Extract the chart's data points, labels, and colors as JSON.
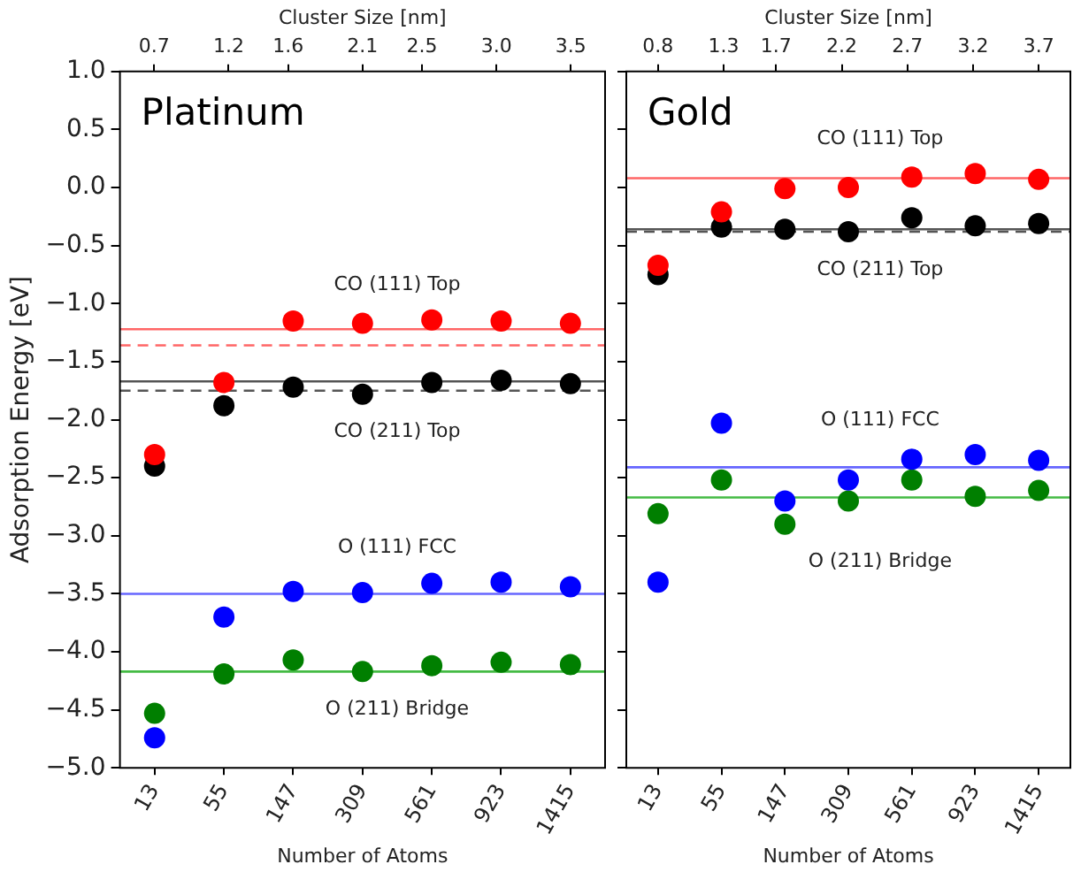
{
  "chart_data": [
    {
      "type": "scatter",
      "title": "Platinum",
      "xlabel": "Number of Atoms",
      "x2label": "Cluster Size [nm]",
      "ylabel": "Adsorption Energy [eV]",
      "categories": [
        "13",
        "55",
        "147",
        "309",
        "561",
        "923",
        "1415"
      ],
      "x2lim": [
        0.47,
        3.73
      ],
      "x2ticks": [
        0.7,
        1.2,
        1.6,
        2.1,
        2.5,
        {
          "value": 3,
          "label": "3.0"
        },
        3.5
      ],
      "ylim": [
        -5,
        1
      ],
      "yticks": [
        {
          "value": -5,
          "label": "−5.0"
        },
        {
          "value": -4.5,
          "label": "−4.5"
        },
        {
          "value": -4,
          "label": "−4.0"
        },
        {
          "value": -3.5,
          "label": "−3.5"
        },
        {
          "value": -3,
          "label": "−3.0"
        },
        {
          "value": -2.5,
          "label": "−2.5"
        },
        {
          "value": -2,
          "label": "−2.0"
        },
        {
          "value": -1.5,
          "label": "−1.5"
        },
        {
          "value": -1,
          "label": "−1.0"
        },
        {
          "value": -0.5,
          "label": "−0.5"
        },
        {
          "value": 0,
          "label": "0.0"
        },
        {
          "value": 0.5,
          "label": "0.5"
        },
        {
          "value": 1,
          "label": "1.0"
        }
      ],
      "grid": false,
      "legend": false,
      "marker": "circle",
      "series": [
        {
          "name": "CO (111) Top",
          "color": "#ff0000",
          "values": [
            -2.3,
            -1.68,
            -1.15,
            -1.17,
            -1.14,
            -1.15,
            -1.17
          ]
        },
        {
          "name": "CO (211) Top",
          "color": "#000000",
          "values": [
            -2.4,
            -1.88,
            -1.72,
            -1.78,
            -1.68,
            -1.66,
            -1.69
          ]
        },
        {
          "name": "O (111) FCC",
          "color": "#0000ff",
          "values": [
            -4.74,
            -3.7,
            -3.48,
            -3.49,
            -3.41,
            -3.4,
            -3.44
          ]
        },
        {
          "name": "O (211) Bridge",
          "color": "#007f00",
          "values": [
            -4.53,
            -4.19,
            -4.07,
            -4.17,
            -4.12,
            -4.09,
            -4.11
          ]
        }
      ],
      "ref_lines": [
        {
          "axis": "y",
          "value": -1.22,
          "color": "#ff6666",
          "line_style": "solid"
        },
        {
          "axis": "y",
          "value": -1.36,
          "color": "#ff6666",
          "line_style": "dashed"
        },
        {
          "axis": "y",
          "value": -1.67,
          "color": "#555555",
          "line_style": "solid"
        },
        {
          "axis": "y",
          "value": -1.75,
          "color": "#555555",
          "line_style": "dashed"
        },
        {
          "axis": "y",
          "value": -3.5,
          "color": "#6666ff",
          "line_style": "solid"
        },
        {
          "axis": "y",
          "value": -4.17,
          "color": "#44bb44",
          "line_style": "solid"
        }
      ]
    },
    {
      "type": "scatter",
      "title": "Gold",
      "xlabel": "Number of Atoms",
      "x2label": "Cluster Size [nm]",
      "categories": [
        "13",
        "55",
        "147",
        "309",
        "561",
        "923",
        "1415"
      ],
      "x2lim": [
        0.56,
        3.94
      ],
      "x2ticks": [
        0.8,
        1.3,
        1.7,
        2.2,
        2.7,
        3.2,
        3.7
      ],
      "ylim": [
        -5,
        1
      ],
      "yticks": [
        -5,
        -4.5,
        -4,
        -3.5,
        -3,
        -2.5,
        -2,
        -1.5,
        -1,
        -0.5,
        0,
        0.5,
        1
      ],
      "tick_labels": "x",
      "grid": false,
      "legend": false,
      "marker": "circle",
      "series": [
        {
          "name": "CO (111) Top",
          "color": "#ff0000",
          "values": [
            -0.67,
            -0.21,
            -0.01,
            0.0,
            0.09,
            0.12,
            0.07
          ]
        },
        {
          "name": "CO (211) Top",
          "color": "#000000",
          "values": [
            -0.75,
            -0.34,
            -0.36,
            -0.38,
            -0.26,
            -0.33,
            -0.31
          ]
        },
        {
          "name": "O (111) FCC",
          "color": "#0000ff",
          "values": [
            -3.4,
            -2.03,
            -2.7,
            -2.52,
            -2.34,
            -2.3,
            -2.35
          ]
        },
        {
          "name": "O (211) Bridge",
          "color": "#007f00",
          "values": [
            -2.81,
            -2.52,
            -2.9,
            -2.7,
            -2.52,
            -2.66,
            -2.61
          ]
        }
      ],
      "ref_lines": [
        {
          "axis": "y",
          "value": 0.08,
          "color": "#ff6666",
          "line_style": "solid"
        },
        {
          "axis": "y",
          "value": -0.36,
          "color": "#555555",
          "line_style": "solid"
        },
        {
          "axis": "y",
          "value": -0.38,
          "color": "#555555",
          "line_style": "dashed"
        },
        {
          "axis": "y",
          "value": -2.41,
          "color": "#6666ff",
          "line_style": "solid"
        },
        {
          "axis": "y",
          "value": -2.67,
          "color": "#44bb44",
          "line_style": "solid"
        }
      ]
    }
  ]
}
